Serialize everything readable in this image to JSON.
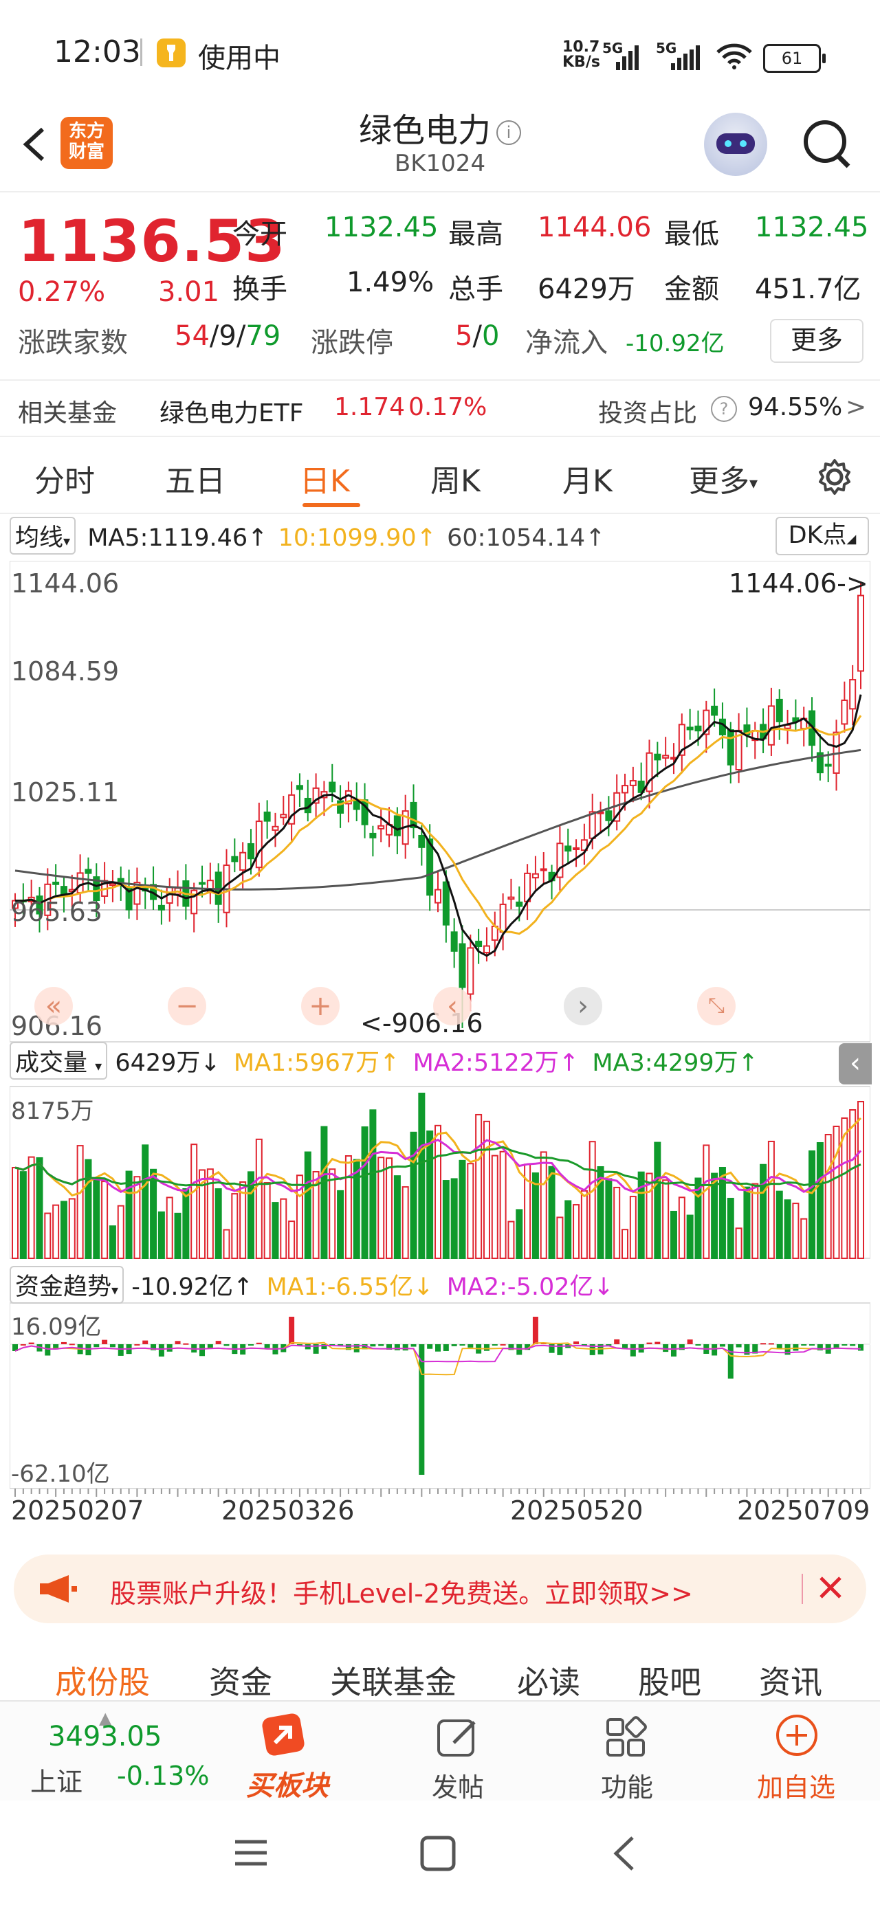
{
  "status_bar": {
    "time": "12:03",
    "app": "使用中",
    "net_speed_top": "10.7",
    "net_speed_bottom": "KB/s",
    "sig1": "5G",
    "sig2": "5G",
    "battery": "61"
  },
  "header": {
    "logo": "东方\n财富",
    "title": "绿色电力",
    "code": "BK1024"
  },
  "quote": {
    "price": "1136.53",
    "change_pct": "0.27%",
    "change": "3.01",
    "open_label": "今开",
    "open": "1132.45",
    "high_label": "最高",
    "high": "1144.06",
    "low_label": "最低",
    "low": "1132.45",
    "turnover_label": "换手",
    "turnover": "1.49%",
    "volume_label": "总手",
    "volume": "6429万",
    "amount_label": "金额",
    "amount": "451.7亿",
    "breadth_label": "涨跌家数",
    "breadth_up": "54",
    "breadth_sep1": "/",
    "breadth_flat": "9",
    "breadth_sep2": "/",
    "breadth_down": "79",
    "limit_label": "涨跌停",
    "limit_up": "5",
    "limit_sep": "/",
    "limit_down": "0",
    "inflow_label": "净流入",
    "inflow": "-10.92亿",
    "more": "更多"
  },
  "fund": {
    "label": "相关基金",
    "name": "绿色电力ETF",
    "price": "1.174",
    "pct": "0.17%",
    "ratio_label": "投资占比",
    "ratio": "94.55%",
    "arrow": ">"
  },
  "tabs": [
    {
      "label": "分时"
    },
    {
      "label": "五日"
    },
    {
      "label": "日K"
    },
    {
      "label": "周K"
    },
    {
      "label": "月K"
    },
    {
      "label": "更多"
    }
  ],
  "ma_line": {
    "selector": "均线",
    "ma5": "MA5:1119.46",
    "ma10": "10:1099.90",
    "ma60": "60:1054.14",
    "up": "↑",
    "dk": "DK点"
  },
  "kline": {
    "price_labels": [
      "1144.06",
      "1084.59",
      "1025.11",
      "965.63",
      "906.16"
    ],
    "max_marker": "1144.06->",
    "min_marker": "<-906.16"
  },
  "volume": {
    "selector": "成交量",
    "value": "6429万",
    "value_arrow": "↓",
    "ma1": "MA1:5967万",
    "ma2": "MA2:5122万",
    "ma3": "MA3:4299万",
    "up": "↑",
    "axis_top": "8175万"
  },
  "cashflow": {
    "selector": "资金趋势",
    "value": "-10.92亿",
    "ma1": "MA1:-6.55亿",
    "ma2": "MA2:-5.02亿",
    "up": "↑",
    "down": "↓",
    "axis_top": "16.09亿",
    "axis_bottom": "-62.10亿"
  },
  "dates": [
    "20250207",
    "20250326",
    "20250520",
    "20250709"
  ],
  "banner": {
    "text": "股票账户升级！手机Level-2免费送。立即领取>>"
  },
  "info_tabs": [
    {
      "label": "成份股"
    },
    {
      "label": "资金"
    },
    {
      "label": "关联基金"
    },
    {
      "label": "必读"
    },
    {
      "label": "股吧"
    },
    {
      "label": "资讯"
    }
  ],
  "bottom_bar": {
    "index_value": "3493.05",
    "index_name": "上证",
    "index_pct": "-0.13%",
    "buy_label": "买板块",
    "post_label": "发帖",
    "func_label": "功能",
    "add_label": "加自选"
  },
  "colors": {
    "up": "#e0242f",
    "down": "#0f9a2c",
    "accent": "#f26b1d",
    "ma5": "#222222",
    "ma10": "#f2b21e",
    "ma60": "#555555",
    "ma_magenta": "#d62ed6",
    "ma_green": "#1a9a2a"
  }
}
